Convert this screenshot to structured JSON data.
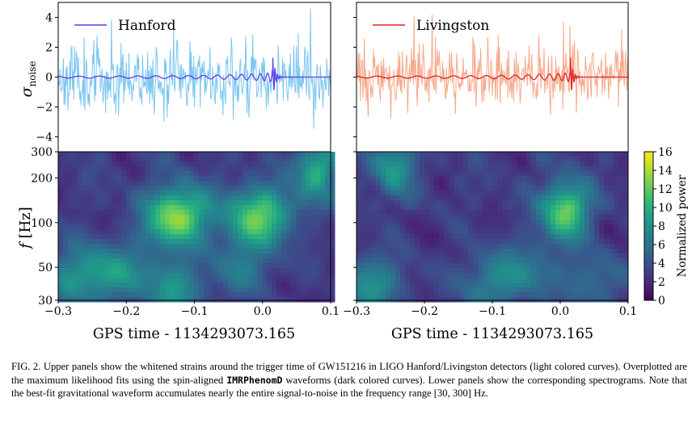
{
  "figure": {
    "panels": [
      {
        "detector": "Hanford",
        "noise_color": "#7cc6f0",
        "fit_color": "#5b3fe6",
        "seed": 11,
        "noise_amp": 1.15,
        "blobs": [
          {
            "t": -0.125,
            "f": 110,
            "ft": -0.145,
            "w": 0.045,
            "amp": 0.95
          },
          {
            "t": -0.005,
            "f": 110,
            "ft": -0.02,
            "w": 0.05,
            "amp": 0.8
          },
          {
            "t": 0.08,
            "f": 230,
            "ft": 0.07,
            "w": 0.03,
            "amp": 0.65
          },
          {
            "t": -0.215,
            "f": 45,
            "ft": -0.24,
            "w": 0.06,
            "amp": 0.4
          },
          {
            "t": -0.27,
            "f": 45,
            "ft": -0.29,
            "w": 0.05,
            "amp": 0.35
          },
          {
            "t": -0.13,
            "f": 35,
            "ft": -0.14,
            "w": 0.04,
            "amp": 0.45
          },
          {
            "t": -0.03,
            "f": 50,
            "ft": -0.06,
            "w": 0.05,
            "amp": 0.3
          }
        ]
      },
      {
        "detector": "Livingston",
        "noise_color": "#f6a88a",
        "fit_color": "#e0241e",
        "seed": 29,
        "noise_amp": 1.0,
        "blobs": [
          {
            "t": 0.008,
            "f": 120,
            "ft": -0.005,
            "w": 0.035,
            "amp": 0.85
          },
          {
            "t": -0.245,
            "f": 240,
            "ft": -0.255,
            "w": 0.03,
            "amp": 0.5
          },
          {
            "t": -0.28,
            "f": 38,
            "ft": -0.3,
            "w": 0.05,
            "amp": 0.45
          },
          {
            "t": -0.05,
            "f": 45,
            "ft": -0.08,
            "w": 0.05,
            "amp": 0.35
          },
          {
            "t": -0.11,
            "f": 40,
            "ft": -0.13,
            "w": 0.04,
            "amp": 0.3
          },
          {
            "t": 0.05,
            "f": 40,
            "ft": 0.04,
            "w": 0.04,
            "amp": 0.3
          }
        ]
      }
    ],
    "upper_axis": {
      "ylabel_main": "σ",
      "ylabel_sub": "noise",
      "ylim": [
        -5,
        5
      ],
      "yticks": [
        -4,
        -2,
        0,
        2,
        4
      ],
      "ytick_labels": [
        "−4",
        "−2",
        "0",
        "2",
        "4"
      ]
    },
    "lower_axis": {
      "ylabel_var": "f",
      "ylabel_unit": " [Hz]",
      "ylim": [
        30,
        300
      ],
      "yticks": [
        30,
        50,
        100,
        200,
        300
      ],
      "ytick_labels": [
        "30",
        "50",
        "100",
        "200",
        "300"
      ]
    },
    "x_axis": {
      "xlim": [
        -0.3,
        0.1
      ],
      "xticks": [
        -0.3,
        -0.2,
        -0.1,
        0.0,
        0.1
      ],
      "xtick_labels": [
        "−0.3",
        "−0.2",
        "−0.1",
        "0.0",
        "0.1"
      ],
      "xlabel": "GPS time - 1134293073.165"
    },
    "colorbar": {
      "label": "Normalized power",
      "range": [
        0,
        16
      ],
      "ticks": [
        0,
        2,
        4,
        6,
        8,
        10,
        12,
        14,
        16
      ],
      "tick_labels": [
        "0",
        "2",
        "4",
        "6",
        "8",
        "10",
        "12",
        "14",
        "16"
      ]
    },
    "event": {
      "merger_time": 0.015,
      "ringdown_end": 0.03
    }
  },
  "caption": {
    "prefix": "FIG. 2.   Upper panels show the whitened strains around the trigger time of GW151216 in LIGO Hanford/Livingston detectors (light colored curves). Overplotted are the maximum likelihood fits using the spin-aligned ",
    "model": "IMRPhenomD",
    "suffix": " waveforms (dark colored curves). Lower panels show the corresponding spectrograms. Note that the best-fit gravitational waveform accumulates nearly the entire signal-to-noise in the frequency range [30, 300] Hz."
  },
  "colors": {
    "viridis": [
      "#440154",
      "#482878",
      "#3e4989",
      "#31688e",
      "#26828e",
      "#1f9e89",
      "#35b779",
      "#6ece58",
      "#b5de2b",
      "#fde725"
    ]
  }
}
